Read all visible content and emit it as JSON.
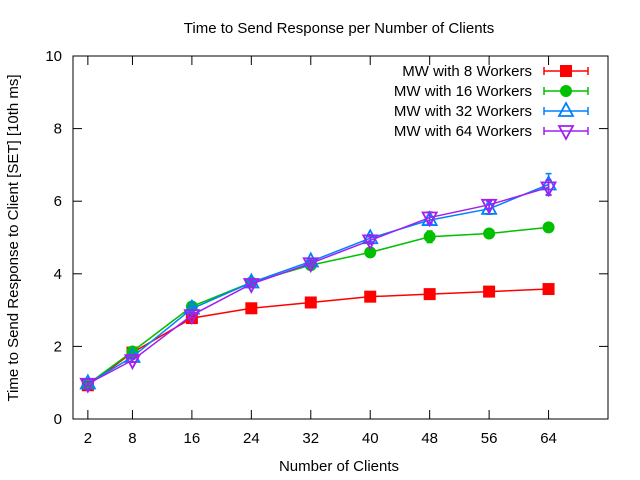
{
  "chart_data": {
    "type": "line",
    "title": "Time to Send Response per Number of Clients",
    "xlabel": "Number of Clients",
    "ylabel": "Time to Send Response to Client [SET] [10th ms]",
    "x": [
      2,
      8,
      16,
      24,
      32,
      40,
      48,
      56,
      64
    ],
    "x_ticks": [
      "2",
      "8",
      "16",
      "24",
      "32",
      "40",
      "48",
      "56",
      "64"
    ],
    "y_ticks": [
      "0",
      "2",
      "4",
      "6",
      "8",
      "10"
    ],
    "xlim": [
      0,
      72
    ],
    "ylim": [
      0,
      10
    ],
    "grid": false,
    "legend_position": "top-right",
    "series": [
      {
        "name": "MW with 8 Workers",
        "color": "#ff0000",
        "marker": "square-filled",
        "values": [
          0.93,
          1.83,
          2.78,
          3.05,
          3.21,
          3.37,
          3.44,
          3.51,
          3.58
        ],
        "errors": [
          0.05,
          0.06,
          0.06,
          0.06,
          0.06,
          0.06,
          0.06,
          0.06,
          0.06
        ]
      },
      {
        "name": "MW with 16 Workers",
        "color": "#00c000",
        "marker": "circle-filled",
        "values": [
          0.96,
          1.86,
          3.1,
          3.76,
          4.24,
          4.59,
          5.02,
          5.11,
          5.28
        ],
        "errors": [
          0.05,
          0.06,
          0.07,
          0.07,
          0.08,
          0.08,
          0.16,
          0.07,
          0.1
        ]
      },
      {
        "name": "MW with 32 Workers",
        "color": "#0080ff",
        "marker": "triangle-up-open",
        "values": [
          0.98,
          1.71,
          3.04,
          3.76,
          4.34,
          4.98,
          5.48,
          5.79,
          6.46
        ],
        "errors": [
          0.05,
          0.06,
          0.07,
          0.08,
          0.08,
          0.1,
          0.12,
          0.15,
          0.3
        ]
      },
      {
        "name": "MW with 64 Workers",
        "color": "#a020f0",
        "marker": "triangle-down-open",
        "values": [
          0.97,
          1.62,
          2.86,
          3.72,
          4.29,
          4.92,
          5.55,
          5.9,
          6.38
        ],
        "errors": [
          0.05,
          0.06,
          0.07,
          0.08,
          0.08,
          0.1,
          0.15,
          0.1,
          0.2
        ]
      }
    ]
  }
}
